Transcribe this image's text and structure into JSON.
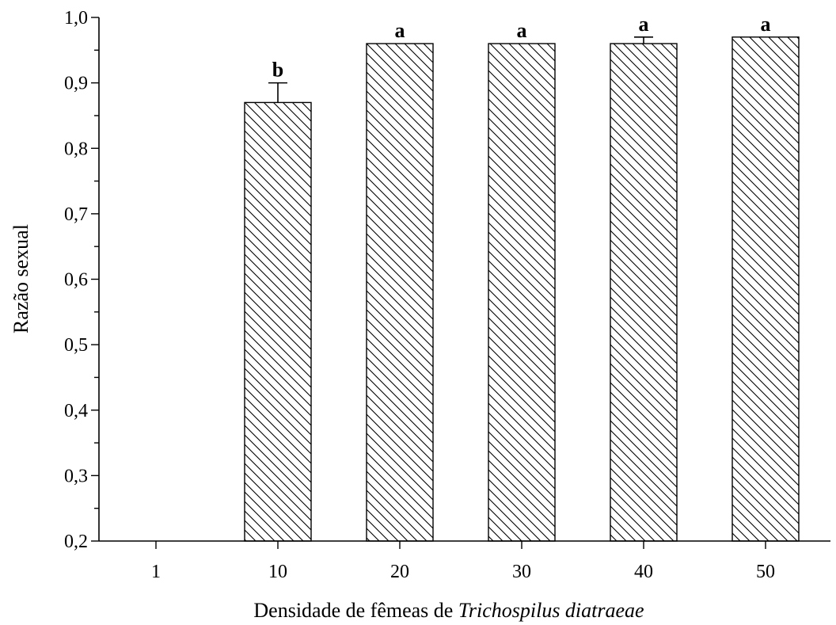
{
  "chart_data": {
    "type": "bar",
    "categories": [
      "1",
      "10",
      "20",
      "30",
      "40",
      "50"
    ],
    "values": [
      null,
      0.87,
      0.96,
      0.96,
      0.96,
      0.97
    ],
    "errors": [
      null,
      0.03,
      0,
      0,
      0.01,
      0
    ],
    "significance": [
      "",
      "b",
      "a",
      "a",
      "a",
      "a"
    ],
    "ylabel": "Razão sexual",
    "xlabel": {
      "prefix": "Densidade de fêmeas de ",
      "species": "Trichospilus diatraeae"
    },
    "ylim": [
      0.2,
      1.0
    ],
    "y_ticks": [
      "0,2",
      "0,3",
      "0,4",
      "0,5",
      "0,6",
      "0,7",
      "0,8",
      "0,9",
      "1,0"
    ],
    "y_tick_values": [
      0.2,
      0.3,
      0.4,
      0.5,
      0.6,
      0.7,
      0.8,
      0.9,
      1.0
    ],
    "bar_fill": "diagonal-hatch",
    "colors": {
      "bar_stroke": "#000000",
      "hatch": "#000000",
      "background": "#ffffff"
    },
    "grid": false,
    "legend": "none"
  }
}
